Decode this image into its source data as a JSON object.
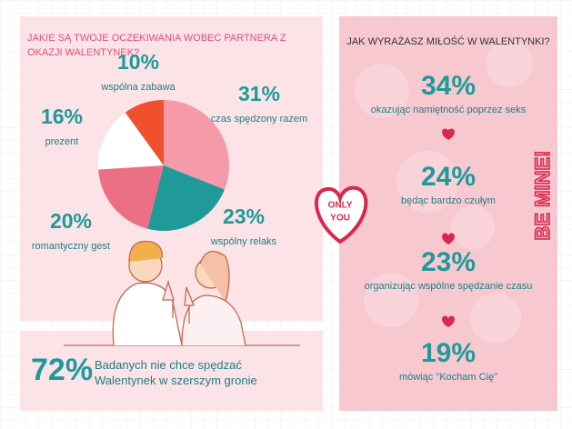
{
  "chart_data": {
    "type": "pie",
    "title": "JAKIE SĄ TWOJE OCZEKIWANIA WOBEC PARTNERA Z OKAZJI WALENTYNEK?",
    "categories": [
      "czas spędzony razem",
      "wspólny relaks",
      "romantyczny gest",
      "prezent",
      "wspólna zabawa"
    ],
    "values": [
      31,
      23,
      20,
      16,
      10
    ],
    "value_labels": [
      "31%",
      "23%",
      "20%",
      "16%",
      "10%"
    ],
    "colors": [
      "#f59aa8",
      "#1f9a98",
      "#ec6f86",
      "#ffffff",
      "#f0502e"
    ]
  },
  "summary": {
    "percent": "72%",
    "text": "Badanych nie chce spędzać Walentynek w szerszym gronie"
  },
  "right_panel": {
    "title": "JAK WYRAŻASZ MIŁOŚĆ W WALENTYNKI?",
    "items": [
      {
        "percent": "34%",
        "label": "okazując namiętność poprzez seks"
      },
      {
        "percent": "24%",
        "label": "będąc bardzo czułym"
      },
      {
        "percent": "23%",
        "label": "organizując wspólne spędzanie czasu"
      },
      {
        "percent": "19%",
        "label": "mówiąc \"Kocham Cię\""
      }
    ]
  },
  "sticker": {
    "line1": "ONLY",
    "line2": "YOU"
  },
  "side_text": "BE MINE!"
}
